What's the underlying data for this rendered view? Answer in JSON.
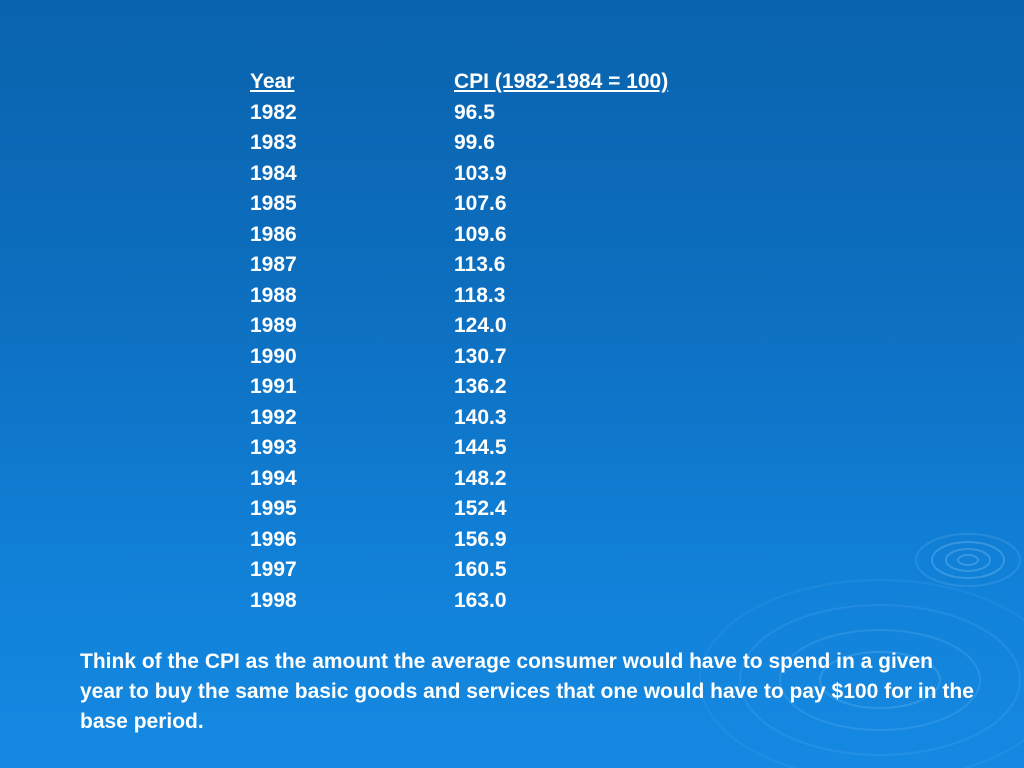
{
  "table": {
    "headers": [
      "Year",
      "CPI (1982-1984 = 100)"
    ],
    "rows": [
      [
        "1982",
        "96.5"
      ],
      [
        "1983",
        "99.6"
      ],
      [
        "1984",
        "103.9"
      ],
      [
        "1985",
        "107.6"
      ],
      [
        "1986",
        "109.6"
      ],
      [
        "1987",
        "113.6"
      ],
      [
        "1988",
        "118.3"
      ],
      [
        "1989",
        "124.0"
      ],
      [
        "1990",
        "130.7"
      ],
      [
        "1991",
        "136.2"
      ],
      [
        "1992",
        "140.3"
      ],
      [
        "1993",
        "144.5"
      ],
      [
        "1994",
        "148.2"
      ],
      [
        "1995",
        "152.4"
      ],
      [
        "1996",
        "156.9"
      ],
      [
        "1997",
        "160.5"
      ],
      [
        "1998",
        "163.0"
      ]
    ]
  },
  "note": "Think of the CPI as the amount the average consumer would have to spend in a given year to buy the same basic goods and services that one would have to pay $100 for in the base period.",
  "colors": {
    "background_top": "#0a63ad",
    "background_bottom": "#1589e2",
    "text": "#ffffff"
  }
}
